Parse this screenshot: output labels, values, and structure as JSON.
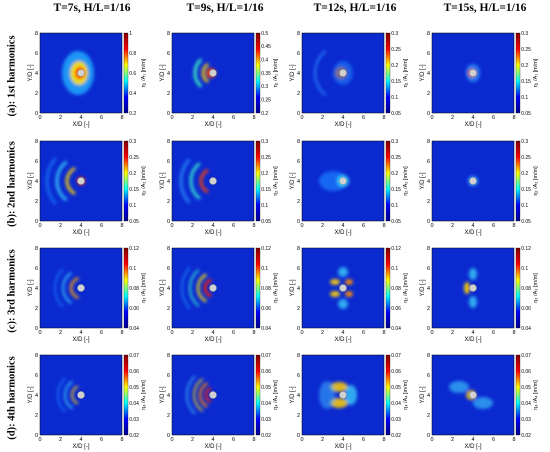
{
  "column_titles": [
    "T=7s, H/L=1/16",
    "T=9s, H/L=1/16",
    "T=12s, H/L=1/16",
    "T=15s, H/L=1/16"
  ],
  "row_labels": [
    "(a): 1st harmonics",
    "(b): 2nd harmonics",
    "(c): 3rd harmonics",
    "(d): 4th harmonics"
  ],
  "chart_data": {
    "type": "heatmap",
    "xlabel": "X/D [-]",
    "ylabel": "Y/D [-]",
    "x_ticks": [
      "0",
      "2",
      "4",
      "6",
      "8"
    ],
    "y_ticks": [
      "0",
      "2",
      "4",
      "6",
      "8"
    ],
    "xlim": [
      0,
      8
    ],
    "ylim": [
      0,
      8
    ],
    "colormap": "jet",
    "colormap_colors": [
      "#00008f",
      "#0000ff",
      "#00ffff",
      "#ffff00",
      "#ff0000",
      "#800000"
    ],
    "background_color": "#0a2ad0",
    "rows": [
      {
        "harmonic": 1,
        "colorbar_label": "η₁ /A₁ [m/m]",
        "panels": [
          {
            "period": "T=7s",
            "clim": [
              0.2,
              1
            ],
            "colorbar_ticks": [
              "0.2",
              "0.4",
              "0.6",
              "0.8",
              "1"
            ]
          },
          {
            "period": "T=9s",
            "clim": [
              0.2,
              0.5
            ],
            "colorbar_ticks": [
              "0.2",
              "0.25",
              "0.3",
              "0.35",
              "0.4",
              "0.45",
              "0.5"
            ]
          },
          {
            "period": "T=12s",
            "clim": [
              0.05,
              0.3
            ],
            "colorbar_ticks": [
              "0.05",
              "0.1",
              "0.15",
              "0.2",
              "0.25",
              "0.3"
            ]
          },
          {
            "period": "T=15s",
            "clim": [
              0.05,
              0.3
            ],
            "colorbar_ticks": [
              "0.05",
              "0.1",
              "0.15",
              "0.2",
              "0.25",
              "0.3"
            ]
          }
        ]
      },
      {
        "harmonic": 2,
        "colorbar_label": "η₂ /A₂ [m/m]",
        "panels": [
          {
            "period": "T=7s",
            "clim": [
              0.05,
              0.3
            ],
            "colorbar_ticks": [
              "0.05",
              "0.1",
              "0.15",
              "0.2",
              "0.25",
              "0.3"
            ]
          },
          {
            "period": "T=9s",
            "clim": [
              0.05,
              0.3
            ],
            "colorbar_ticks": [
              "0.05",
              "0.1",
              "0.15",
              "0.2",
              "0.25",
              "0.3"
            ]
          },
          {
            "period": "T=12s",
            "clim": [
              0.05,
              0.3
            ],
            "colorbar_ticks": [
              "0.05",
              "0.1",
              "0.15",
              "0.2",
              "0.25",
              "0.3"
            ]
          },
          {
            "period": "T=15s",
            "clim": [
              0.05,
              0.3
            ],
            "colorbar_ticks": [
              "0.05",
              "0.1",
              "0.15",
              "0.2",
              "0.25",
              "0.3"
            ]
          }
        ]
      },
      {
        "harmonic": 3,
        "colorbar_label": "η₃ /A₃ [m/m]",
        "panels": [
          {
            "period": "T=7s",
            "clim": [
              0.04,
              0.12
            ],
            "colorbar_ticks": [
              "0.04",
              "0.06",
              "0.08",
              "0.1",
              "0.12"
            ]
          },
          {
            "period": "T=9s",
            "clim": [
              0.04,
              0.12
            ],
            "colorbar_ticks": [
              "0.04",
              "0.06",
              "0.08",
              "0.1",
              "0.12"
            ]
          },
          {
            "period": "T=12s",
            "clim": [
              0.04,
              0.12
            ],
            "colorbar_ticks": [
              "0.04",
              "0.06",
              "0.08",
              "0.1",
              "0.12"
            ]
          },
          {
            "period": "T=15s",
            "clim": [
              0.04,
              0.12
            ],
            "colorbar_ticks": [
              "0.04",
              "0.06",
              "0.08",
              "0.1",
              "0.12"
            ]
          }
        ]
      },
      {
        "harmonic": 4,
        "colorbar_label": "η₄ /A₄ [m/m]",
        "panels": [
          {
            "period": "T=7s",
            "clim": [
              0.02,
              0.07
            ],
            "colorbar_ticks": [
              "0.02",
              "0.03",
              "0.04",
              "0.05",
              "0.06",
              "0.07"
            ]
          },
          {
            "period": "T=9s",
            "clim": [
              0.02,
              0.07
            ],
            "colorbar_ticks": [
              "0.02",
              "0.03",
              "0.04",
              "0.05",
              "0.06",
              "0.07"
            ]
          },
          {
            "period": "T=12s",
            "clim": [
              0.02,
              0.07
            ],
            "colorbar_ticks": [
              "0.02",
              "0.03",
              "0.04",
              "0.05",
              "0.06",
              "0.07"
            ]
          },
          {
            "period": "T=15s",
            "clim": [
              0.02,
              0.07
            ],
            "colorbar_ticks": [
              "0.02",
              "0.03",
              "0.04",
              "0.05",
              "0.06",
              "0.07"
            ]
          }
        ]
      }
    ]
  }
}
